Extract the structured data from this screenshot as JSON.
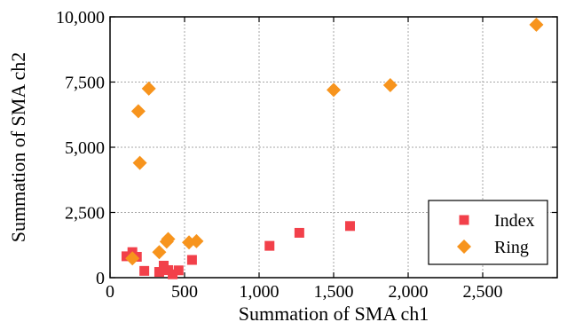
{
  "chart_data": {
    "type": "scatter",
    "title": "",
    "xlabel": "Summation of SMA ch1",
    "ylabel": "Summation of SMA ch2",
    "xlim": [
      0,
      3000
    ],
    "ylim": [
      0,
      10000
    ],
    "x_ticks": [
      0,
      500,
      1000,
      1500,
      2000,
      2500
    ],
    "x_tick_labels": [
      "0",
      "500",
      "1,000",
      "1,500",
      "2,000",
      "2,500"
    ],
    "y_ticks": [
      0,
      2500,
      5000,
      7500,
      10000
    ],
    "y_tick_labels": [
      "0",
      "2,500",
      "5,000",
      "7,500",
      "10,000"
    ],
    "grid": true,
    "legend_position": "bottom-right",
    "series": [
      {
        "name": "Index",
        "marker": "square",
        "color": "#f2404a",
        "points": [
          [
            110,
            820
          ],
          [
            150,
            980
          ],
          [
            180,
            800
          ],
          [
            230,
            260
          ],
          [
            330,
            220
          ],
          [
            360,
            460
          ],
          [
            390,
            290
          ],
          [
            420,
            130
          ],
          [
            460,
            280
          ],
          [
            550,
            680
          ],
          [
            1070,
            1220
          ],
          [
            1270,
            1720
          ],
          [
            1610,
            1980
          ]
        ]
      },
      {
        "name": "Ring",
        "marker": "diamond",
        "color": "#f7941d",
        "points": [
          [
            150,
            740
          ],
          [
            190,
            6380
          ],
          [
            200,
            4400
          ],
          [
            260,
            7250
          ],
          [
            330,
            980
          ],
          [
            380,
            1380
          ],
          [
            390,
            1480
          ],
          [
            530,
            1350
          ],
          [
            580,
            1400
          ],
          [
            1500,
            7200
          ],
          [
            1880,
            7380
          ],
          [
            2860,
            9700
          ]
        ]
      }
    ]
  }
}
